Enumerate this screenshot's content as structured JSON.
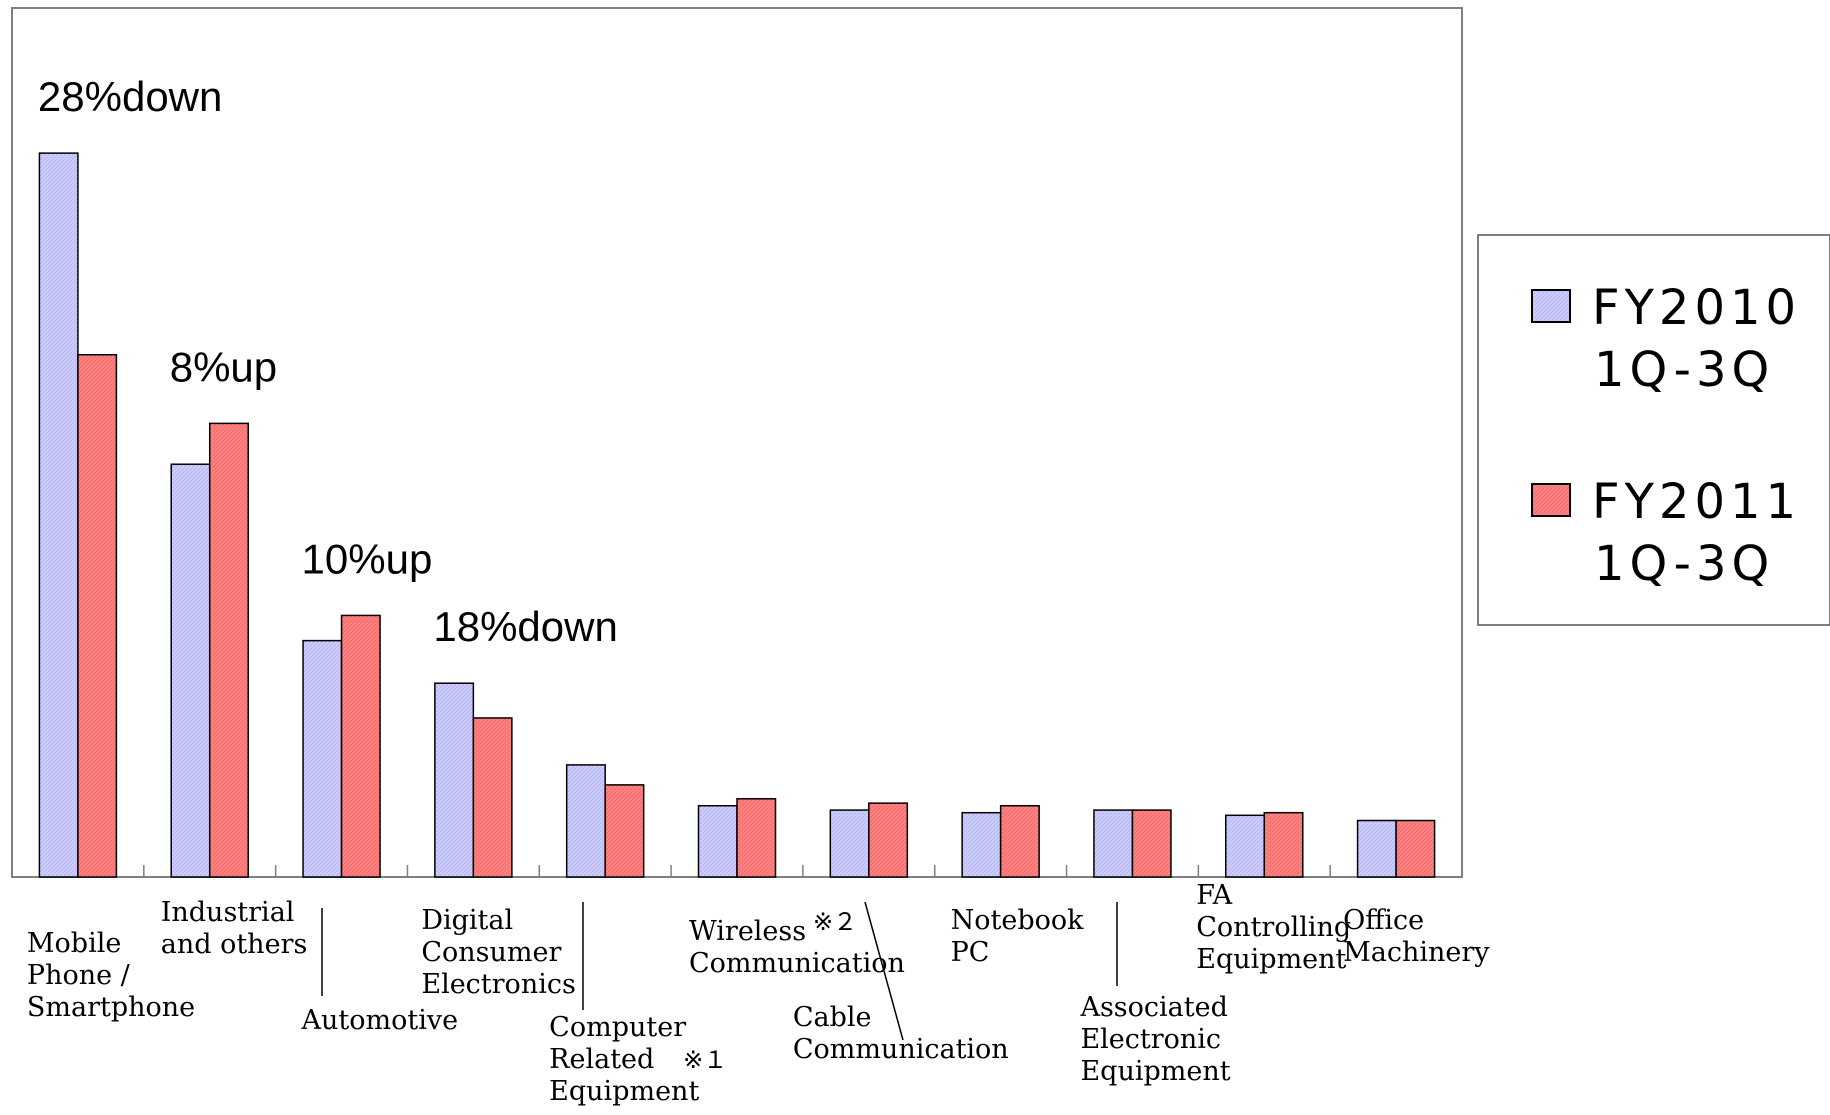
{
  "chart_data": {
    "type": "bar",
    "title": "",
    "xlabel": "",
    "ylabel": "",
    "ylim": [
      0,
      100
    ],
    "grid": false,
    "legend": "right",
    "categories": [
      [
        "Mobile",
        "Phone /",
        "Smartphone"
      ],
      [
        "Industrial",
        "and others"
      ],
      [
        "Automotive"
      ],
      [
        "Digital",
        "Consumer",
        "Electronics"
      ],
      [
        "Computer",
        "Related",
        "Equipment"
      ],
      [
        "Wireless",
        "Communication"
      ],
      [
        "Cable",
        "Communication"
      ],
      [
        "Notebook",
        "PC"
      ],
      [
        "Associated",
        "Electronic",
        "Equipment"
      ],
      [
        "FA",
        "Controlling",
        "Equipment"
      ],
      [
        "Office",
        "Machinery"
      ]
    ],
    "category_notes": [
      "",
      "",
      "",
      "",
      "※１",
      "※２",
      "",
      "",
      "",
      "",
      ""
    ],
    "series": [
      {
        "name": [
          "FY2010",
          "1Q-3Q"
        ],
        "color": "#ccccff",
        "values": [
          83.3,
          47.5,
          27.2,
          22.3,
          12.9,
          8.2,
          7.7,
          7.4,
          7.7,
          7.1,
          6.5
        ]
      },
      {
        "name": [
          "FY2011",
          "1Q-3Q"
        ],
        "color": "#ff8080",
        "values": [
          60.1,
          52.2,
          30.1,
          18.3,
          10.6,
          9.0,
          8.5,
          8.2,
          7.7,
          7.4,
          6.5
        ]
      }
    ],
    "annotations": [
      {
        "text": "28%down",
        "category": 0
      },
      {
        "text": "8%up",
        "category": 1
      },
      {
        "text": "10%up",
        "category": 2
      },
      {
        "text": "18%down",
        "category": 3
      }
    ]
  }
}
